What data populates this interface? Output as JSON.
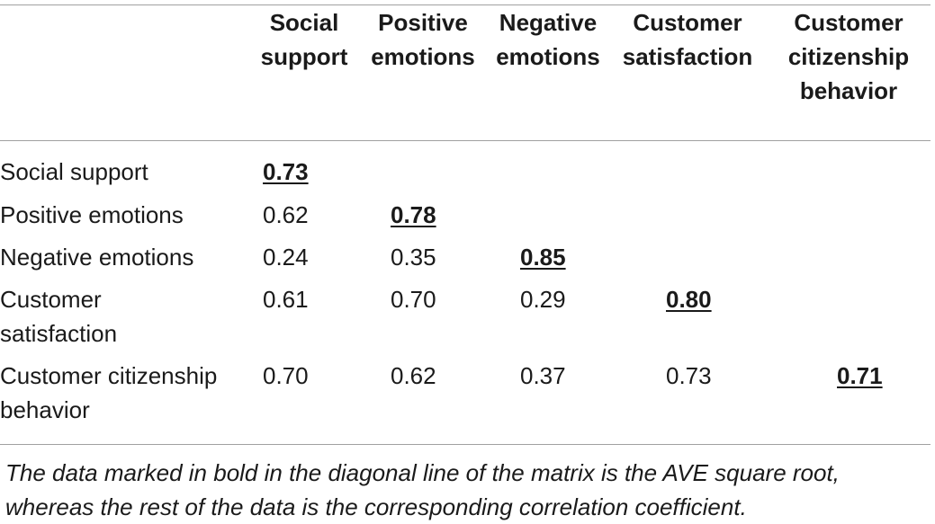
{
  "columns": [
    "",
    "Social support",
    "Positive emotions",
    "Negative emotions",
    "Customer satisfaction",
    "Customer citizenship behavior"
  ],
  "rows": [
    {
      "label": "Social support",
      "values": [
        "0.73",
        "",
        "",
        "",
        ""
      ]
    },
    {
      "label": "Positive emotions",
      "values": [
        "0.62",
        "0.78",
        "",
        "",
        ""
      ]
    },
    {
      "label": "Negative emotions",
      "values": [
        "0.24",
        "0.35",
        "0.85",
        "",
        ""
      ]
    },
    {
      "label": "Customer satisfaction",
      "values": [
        "0.61",
        "0.70",
        "0.29",
        "0.80",
        ""
      ]
    },
    {
      "label": "Customer citizenship behavior",
      "values": [
        "0.70",
        "0.62",
        "0.37",
        "0.73",
        "0.71"
      ]
    }
  ],
  "footnote": "The data marked in bold in the diagonal line of the matrix is the AVE square root, whereas the rest of the data is the corresponding correlation coefficient."
}
